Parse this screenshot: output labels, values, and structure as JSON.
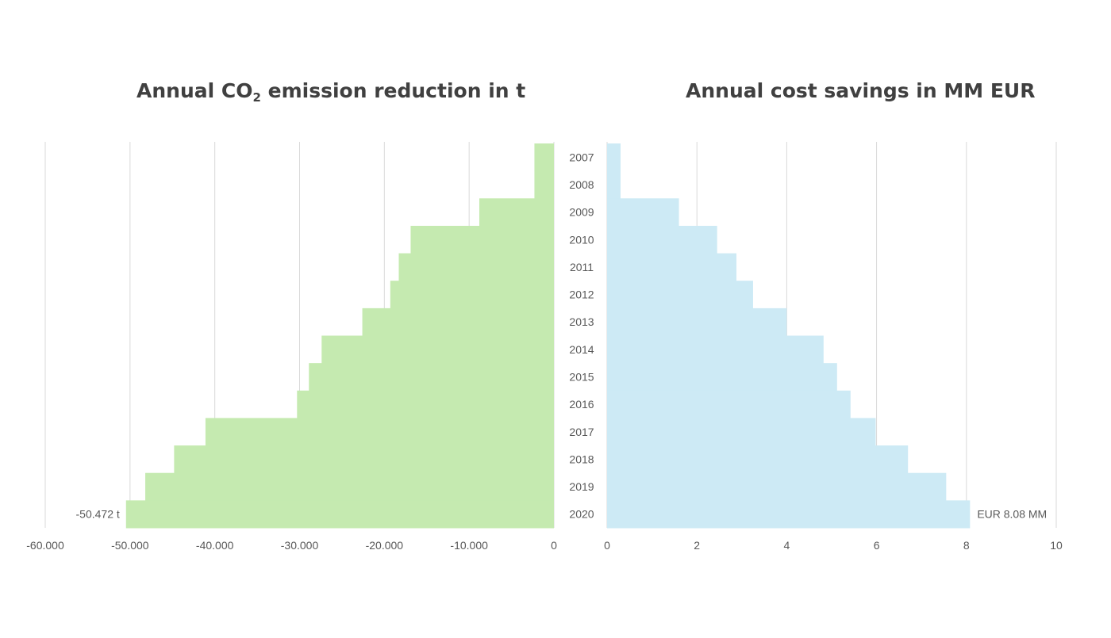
{
  "charts": {
    "left_title": {
      "pre": "Annual CO",
      "sub": "2",
      "post": " emission reduction in t"
    },
    "right_title": "Annual cost savings in MM EUR"
  },
  "chart_data": [
    {
      "type": "bar",
      "orientation": "horizontal",
      "title": "Annual CO2 emission reduction in t",
      "categories": [
        "2007",
        "2008",
        "2009",
        "2010",
        "2011",
        "2012",
        "2013",
        "2014",
        "2015",
        "2016",
        "2017",
        "2018",
        "2019",
        "2020"
      ],
      "values": [
        -2300,
        -2300,
        -8800,
        -16900,
        -18300,
        -19300,
        -22600,
        -27400,
        -28900,
        -30300,
        -41100,
        -44800,
        -48200,
        -50472
      ],
      "xlim": [
        -60000,
        0
      ],
      "xticks": [
        -60000,
        -50000,
        -40000,
        -30000,
        -20000,
        -10000,
        0
      ],
      "xtick_labels": [
        "-60.000",
        "-50.000",
        "-40.000",
        "-30.000",
        "-20.000",
        "-10.000",
        "0"
      ],
      "grid": true,
      "color": "#c5eab0",
      "annotations": [
        {
          "category": "2020",
          "text": "-50.472 t"
        }
      ]
    },
    {
      "type": "bar",
      "orientation": "horizontal",
      "title": "Annual cost savings in MM EUR",
      "categories": [
        "2007",
        "2008",
        "2009",
        "2010",
        "2011",
        "2012",
        "2013",
        "2014",
        "2015",
        "2016",
        "2017",
        "2018",
        "2019",
        "2020"
      ],
      "values": [
        0.3,
        0.3,
        1.6,
        2.45,
        2.88,
        3.25,
        4.0,
        4.82,
        5.12,
        5.42,
        5.98,
        6.7,
        7.55,
        8.08
      ],
      "xlim": [
        0,
        10
      ],
      "xticks": [
        0,
        2,
        4,
        6,
        8,
        10
      ],
      "xtick_labels": [
        "0",
        "2",
        "4",
        "6",
        "8",
        "10"
      ],
      "grid": true,
      "color": "#cdeaf5",
      "annotations": [
        {
          "category": "2020",
          "text": "EUR 8.08 MM"
        }
      ]
    }
  ]
}
